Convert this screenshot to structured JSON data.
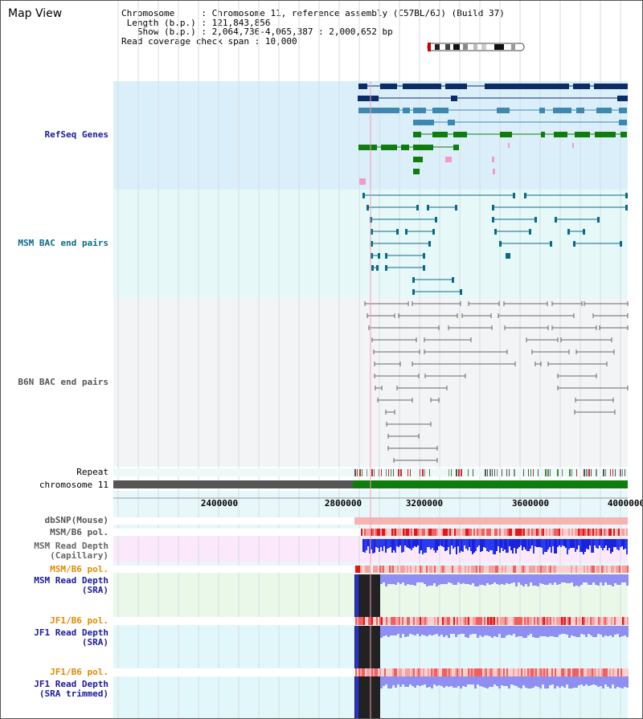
{
  "view": {
    "title": "Map View",
    "info": {
      "chromosome_key": "Chromosome",
      "chromosome_value": "Chromosome 11, reference assembly (C57BL/6J) (Build 37)",
      "length_key": "Length (b.p.)",
      "length_value": "121,843,856",
      "show_key": "Show (b.p.)",
      "show_value": "2,064,736-4,065,387 : 2,000,652 bp",
      "coverage_key": "Read coverage check span",
      "coverage_value": "10,000"
    }
  },
  "tracks": {
    "refseq": "RefSeq Genes",
    "msm_bac": "MSM BAC end pairs",
    "b6n_bac": "B6N BAC end pairs",
    "repeat": "Repeat",
    "chromosome": "chromosome 11",
    "dbsnp": "dbSNP(Mouse)",
    "msm_b6_pol": "MSM/B6 pol.",
    "msm_depth_cap_1": "MSM Read Depth",
    "msm_depth_cap_2": "(Capillary)",
    "msm_b6_pol_2": "MSM/B6 pol.",
    "msm_depth_sra_1": "MSM Read Depth",
    "msm_depth_sra_2": "(SRA)",
    "jf1_b6_pol": "JF1/B6 pol.",
    "jf1_depth_sra_1": "JF1 Read Depth",
    "jf1_depth_sra_2": "(SRA)",
    "jf1_b6_pol_2": "JF1/B6 pol.",
    "jf1_depth_trim_1": "JF1 Read Depth",
    "jf1_depth_trim_2": "(SRA trimmed)"
  },
  "axis": {
    "ticks": [
      "2400000",
      "2800000",
      "3200000",
      "3600000",
      "4000000"
    ]
  },
  "colors": {
    "refseq_label": "#1a1aa0",
    "msm_label": "#0a6a86",
    "b6n_label": "#555555",
    "depth_label": "#1a1aa0",
    "pol_orange": "#e08a00",
    "refseq_bg": "#dbeffa",
    "msm_bg": "#e6f8f8",
    "b6n_bg": "#f3f4f6",
    "chromosome_fill": "#0e7d0e",
    "chromosome_gap": "#555555"
  }
}
